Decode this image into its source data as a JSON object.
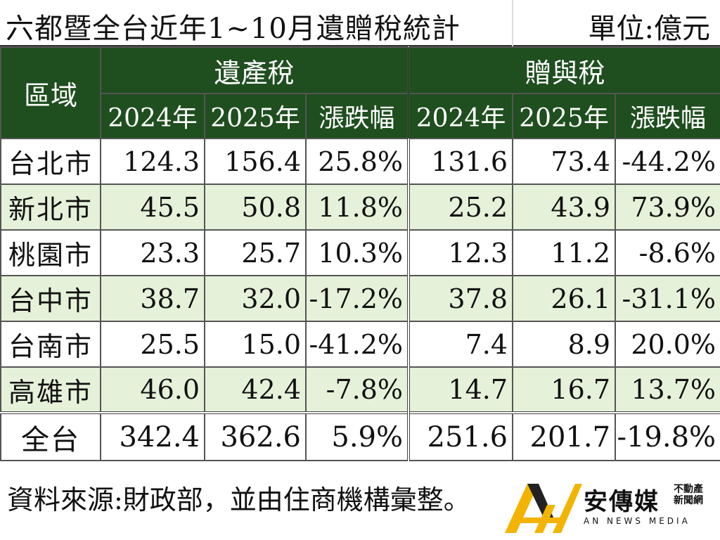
{
  "title": "六都暨全台近年1~10月遺贈稅統計",
  "unit": "單位:億元",
  "headers": {
    "region": "區域",
    "estate_tax": "遺產稅",
    "gift_tax": "贈與稅",
    "year_2024": "2024年",
    "year_2025": "2025年",
    "change": "漲跌幅"
  },
  "rows": [
    {
      "name": "台北市",
      "e2024": "124.3",
      "e2025": "156.4",
      "echg": "25.8%",
      "g2024": "131.6",
      "g2025": "73.4",
      "gchg": "-44.2%"
    },
    {
      "name": "新北市",
      "e2024": "45.5",
      "e2025": "50.8",
      "echg": "11.8%",
      "g2024": "25.2",
      "g2025": "43.9",
      "gchg": "73.9%"
    },
    {
      "name": "桃園市",
      "e2024": "23.3",
      "e2025": "25.7",
      "echg": "10.3%",
      "g2024": "12.3",
      "g2025": "11.2",
      "gchg": "-8.6%"
    },
    {
      "name": "台中市",
      "e2024": "38.7",
      "e2025": "32.0",
      "echg": "-17.2%",
      "g2024": "37.8",
      "g2025": "26.1",
      "gchg": "-31.1%"
    },
    {
      "name": "台南市",
      "e2024": "25.5",
      "e2025": "15.0",
      "echg": "-41.2%",
      "g2024": "7.4",
      "g2025": "8.9",
      "gchg": "20.0%"
    },
    {
      "name": "高雄市",
      "e2024": "46.0",
      "e2025": "42.4",
      "echg": "-7.8%",
      "g2024": "14.7",
      "g2025": "16.7",
      "gchg": "13.7%"
    }
  ],
  "total": {
    "name": "全台",
    "e2024": "342.4",
    "e2025": "362.6",
    "echg": "5.9%",
    "g2024": "251.6",
    "g2025": "201.7",
    "gchg": "-19.8%"
  },
  "source": "資料來源:財政部，並由住商機構彙整。",
  "logo": {
    "name": "安傳媒",
    "side_line1": "不動產",
    "side_line2": "新聞網",
    "english": "AN NEWS MEDIA",
    "colors": {
      "gold": "#f2b400",
      "dark": "#222222"
    }
  }
}
